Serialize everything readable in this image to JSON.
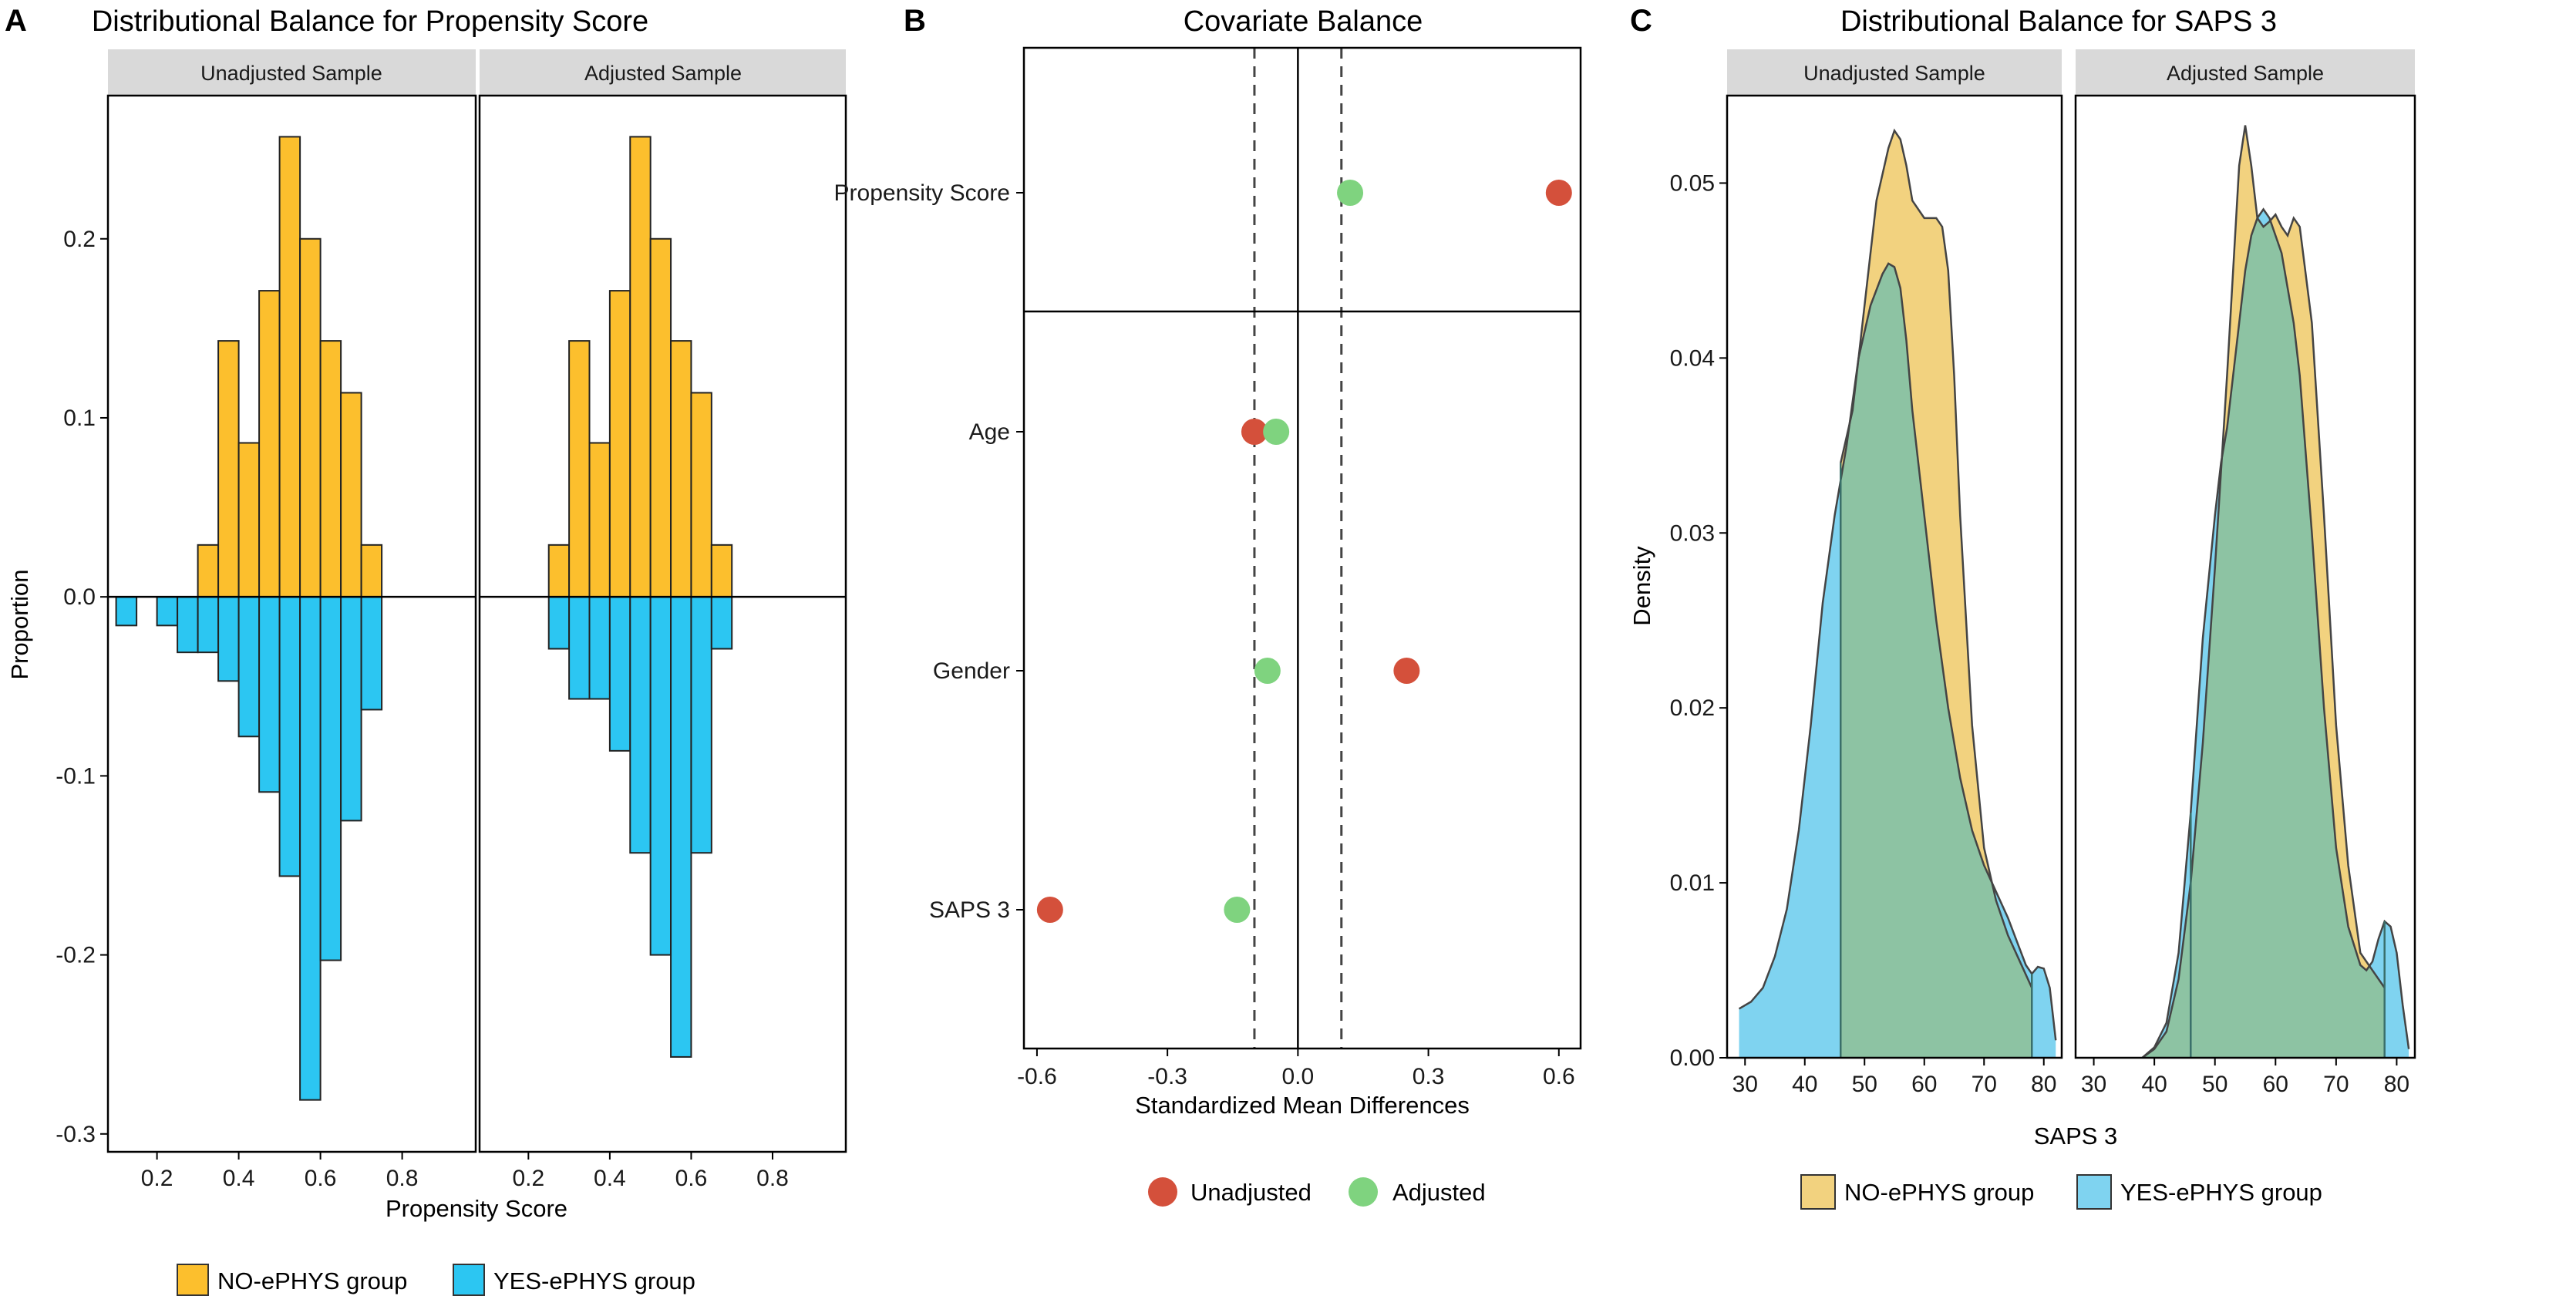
{
  "colors": {
    "no_ephys": "#FCBF2D",
    "yes_ephys": "#2CC6F2",
    "dens_no": "#F2D27F",
    "dens_yes": "#7FD3F0",
    "dens_overlap": "#8DC3A3",
    "unadjusted": "#D4503B",
    "adjusted": "#7FD37F",
    "strip_bg": "#D9D9D9"
  },
  "panel_a": {
    "label": "A",
    "title": "Distributional Balance for Propensity Score",
    "facets": [
      "Unadjusted Sample",
      "Adjusted Sample"
    ],
    "xlabel": "Propensity Score",
    "ylabel": "Proportion",
    "legend": [
      "NO-ePHYS group",
      "YES-ePHYS group"
    ]
  },
  "panel_b": {
    "label": "B",
    "title": "Covariate Balance",
    "xlabel": "Standardized Mean Differences",
    "legend": [
      "Unadjusted",
      "Adjusted"
    ]
  },
  "panel_c": {
    "label": "C",
    "title": "Distributional Balance for SAPS 3",
    "facets": [
      "Unadjusted Sample",
      "Adjusted Sample"
    ],
    "xlabel": "SAPS 3",
    "ylabel": "Density",
    "legend": [
      "NO-ePHYS group",
      "YES-ePHYS group"
    ]
  },
  "chart_data": [
    {
      "type": "bar",
      "title": "Distributional Balance for Propensity Score",
      "xlabel": "Propensity Score",
      "ylabel": "Proportion",
      "xlim": [
        0.08,
        0.98
      ],
      "ylim": [
        -0.31,
        0.28
      ],
      "x_ticks": [
        0.2,
        0.4,
        0.6,
        0.8
      ],
      "y_ticks": [
        -0.3,
        -0.2,
        -0.1,
        0.0,
        0.1,
        0.2
      ],
      "y_tick_labels": [
        "-0.3",
        "-0.2",
        "-0.1",
        "0.0",
        "0.1",
        "0.2"
      ],
      "bin_width": 0.05,
      "bin_centers": [
        0.125,
        0.175,
        0.225,
        0.275,
        0.325,
        0.375,
        0.425,
        0.475,
        0.525,
        0.575,
        0.625,
        0.675,
        0.725,
        0.775,
        0.825,
        0.875,
        0.925
      ],
      "facets": [
        {
          "name": "Unadjusted Sample",
          "series": [
            {
              "name": "NO-ePHYS group",
              "values": [
                0,
                0,
                0,
                0,
                0.029,
                0.143,
                0.086,
                0.171,
                0.257,
                0.2,
                0.143,
                0.114,
                0.029,
                0,
                0,
                0,
                0
              ]
            },
            {
              "name": "YES-ePHYS group",
              "values": [
                -0.016,
                0,
                -0.016,
                -0.031,
                -0.031,
                -0.047,
                -0.078,
                -0.109,
                -0.156,
                -0.281,
                -0.203,
                -0.125,
                -0.063,
                0,
                0,
                0,
                0
              ]
            }
          ],
          "series_start_bin": [
            0,
            0
          ]
        },
        {
          "name": "Adjusted Sample",
          "series": [
            {
              "name": "NO-ePHYS group",
              "values": [
                0,
                0,
                0,
                0.029,
                0.143,
                0.086,
                0.171,
                0.257,
                0.2,
                0.143,
                0.114,
                0.029,
                0,
                0,
                0,
                0,
                0
              ]
            },
            {
              "name": "YES-ePHYS group",
              "values": [
                0,
                0,
                0,
                -0.029,
                -0.057,
                -0.057,
                -0.086,
                -0.143,
                -0.2,
                -0.257,
                -0.143,
                -0.029,
                0,
                0,
                0,
                0,
                0
              ]
            }
          ],
          "series_start_bin": [
            2,
            2
          ]
        }
      ]
    },
    {
      "type": "scatter",
      "title": "Covariate Balance",
      "xlabel": "Standardized Mean Differences",
      "xlim": [
        -0.63,
        0.65
      ],
      "x_ticks": [
        -0.6,
        -0.3,
        0.0,
        0.3,
        0.6
      ],
      "x_tick_labels": [
        "-0.6",
        "-0.3",
        "0.0",
        "0.3",
        "0.6"
      ],
      "threshold_lines": [
        -0.1,
        0.1
      ],
      "zero_line": 0.0,
      "covariates": [
        "Propensity Score",
        "Age",
        "Gender",
        "SAPS 3"
      ],
      "series": [
        {
          "name": "Unadjusted",
          "values": [
            0.6,
            -0.1,
            0.25,
            -0.57
          ]
        },
        {
          "name": "Adjusted",
          "values": [
            0.12,
            -0.05,
            -0.07,
            -0.14
          ]
        }
      ]
    },
    {
      "type": "area",
      "title": "Distributional Balance for SAPS 3",
      "xlabel": "SAPS 3",
      "ylabel": "Density",
      "xlim": [
        27,
        83
      ],
      "ylim": [
        0,
        0.055
      ],
      "x_ticks": [
        30,
        40,
        50,
        60,
        70,
        80
      ],
      "y_ticks": [
        0.0,
        0.01,
        0.02,
        0.03,
        0.04,
        0.05
      ],
      "y_tick_labels": [
        "0.00",
        "0.01",
        "0.02",
        "0.03",
        "0.04",
        "0.05"
      ],
      "facets": [
        {
          "name": "Unadjusted Sample",
          "series": [
            {
              "name": "NO-ePHYS group",
              "x": [
                46,
                48,
                50,
                52,
                54,
                55,
                56,
                57,
                58,
                60,
                62,
                63,
                64,
                65,
                66,
                68,
                70,
                72,
                74,
                76,
                78
              ],
              "y": [
                0.034,
                0.037,
                0.043,
                0.049,
                0.052,
                0.053,
                0.0525,
                0.051,
                0.049,
                0.048,
                0.048,
                0.0475,
                0.045,
                0.039,
                0.031,
                0.019,
                0.012,
                0.009,
                0.007,
                0.0055,
                0.004
              ]
            },
            {
              "name": "YES-ePHYS group",
              "x": [
                29,
                31,
                33,
                35,
                37,
                39,
                41,
                43,
                45,
                47,
                49,
                51,
                53,
                54,
                55,
                56,
                57,
                58,
                59,
                60,
                62,
                64,
                66,
                68,
                70,
                72,
                74,
                76,
                77,
                78,
                79,
                80,
                81,
                82
              ],
              "y": [
                0.0028,
                0.0032,
                0.004,
                0.0058,
                0.0085,
                0.013,
                0.019,
                0.026,
                0.031,
                0.035,
                0.04,
                0.043,
                0.0448,
                0.0454,
                0.0452,
                0.044,
                0.041,
                0.037,
                0.034,
                0.031,
                0.025,
                0.02,
                0.016,
                0.013,
                0.011,
                0.0095,
                0.008,
                0.0062,
                0.0053,
                0.0048,
                0.0052,
                0.0051,
                0.004,
                0.001
              ]
            }
          ],
          "quantile_lines": [
            46,
            78
          ]
        },
        {
          "name": "Adjusted Sample",
          "series": [
            {
              "name": "NO-ePHYS group",
              "x": [
                38,
                40,
                42,
                44,
                46,
                48,
                50,
                52,
                53,
                54,
                55,
                56,
                57,
                58,
                59,
                60,
                61,
                62,
                63,
                64,
                66,
                68,
                70,
                72,
                74,
                76,
                78
              ],
              "y": [
                0,
                0.0005,
                0.0015,
                0.0045,
                0.01,
                0.018,
                0.028,
                0.039,
                0.045,
                0.051,
                0.0533,
                0.051,
                0.048,
                0.0475,
                0.0478,
                0.0482,
                0.0475,
                0.047,
                0.048,
                0.0475,
                0.042,
                0.031,
                0.019,
                0.011,
                0.006,
                0.005,
                0.004
              ]
            },
            {
              "name": "YES-ePHYS group",
              "x": [
                38,
                40,
                42,
                44,
                46,
                48,
                50,
                51,
                52,
                54,
                55,
                56,
                57,
                58,
                59,
                60,
                61,
                62,
                63,
                64,
                66,
                68,
                70,
                72,
                74,
                75,
                76,
                77,
                78,
                79,
                80,
                81,
                82
              ],
              "y": [
                0,
                0.0006,
                0.002,
                0.006,
                0.014,
                0.024,
                0.031,
                0.034,
                0.036,
                0.042,
                0.045,
                0.047,
                0.048,
                0.0485,
                0.048,
                0.047,
                0.046,
                0.044,
                0.042,
                0.039,
                0.03,
                0.02,
                0.012,
                0.0075,
                0.0053,
                0.005,
                0.0055,
                0.0068,
                0.0078,
                0.0075,
                0.006,
                0.003,
                0.0005
              ]
            }
          ],
          "quantile_lines": [
            46,
            78
          ]
        }
      ]
    }
  ]
}
